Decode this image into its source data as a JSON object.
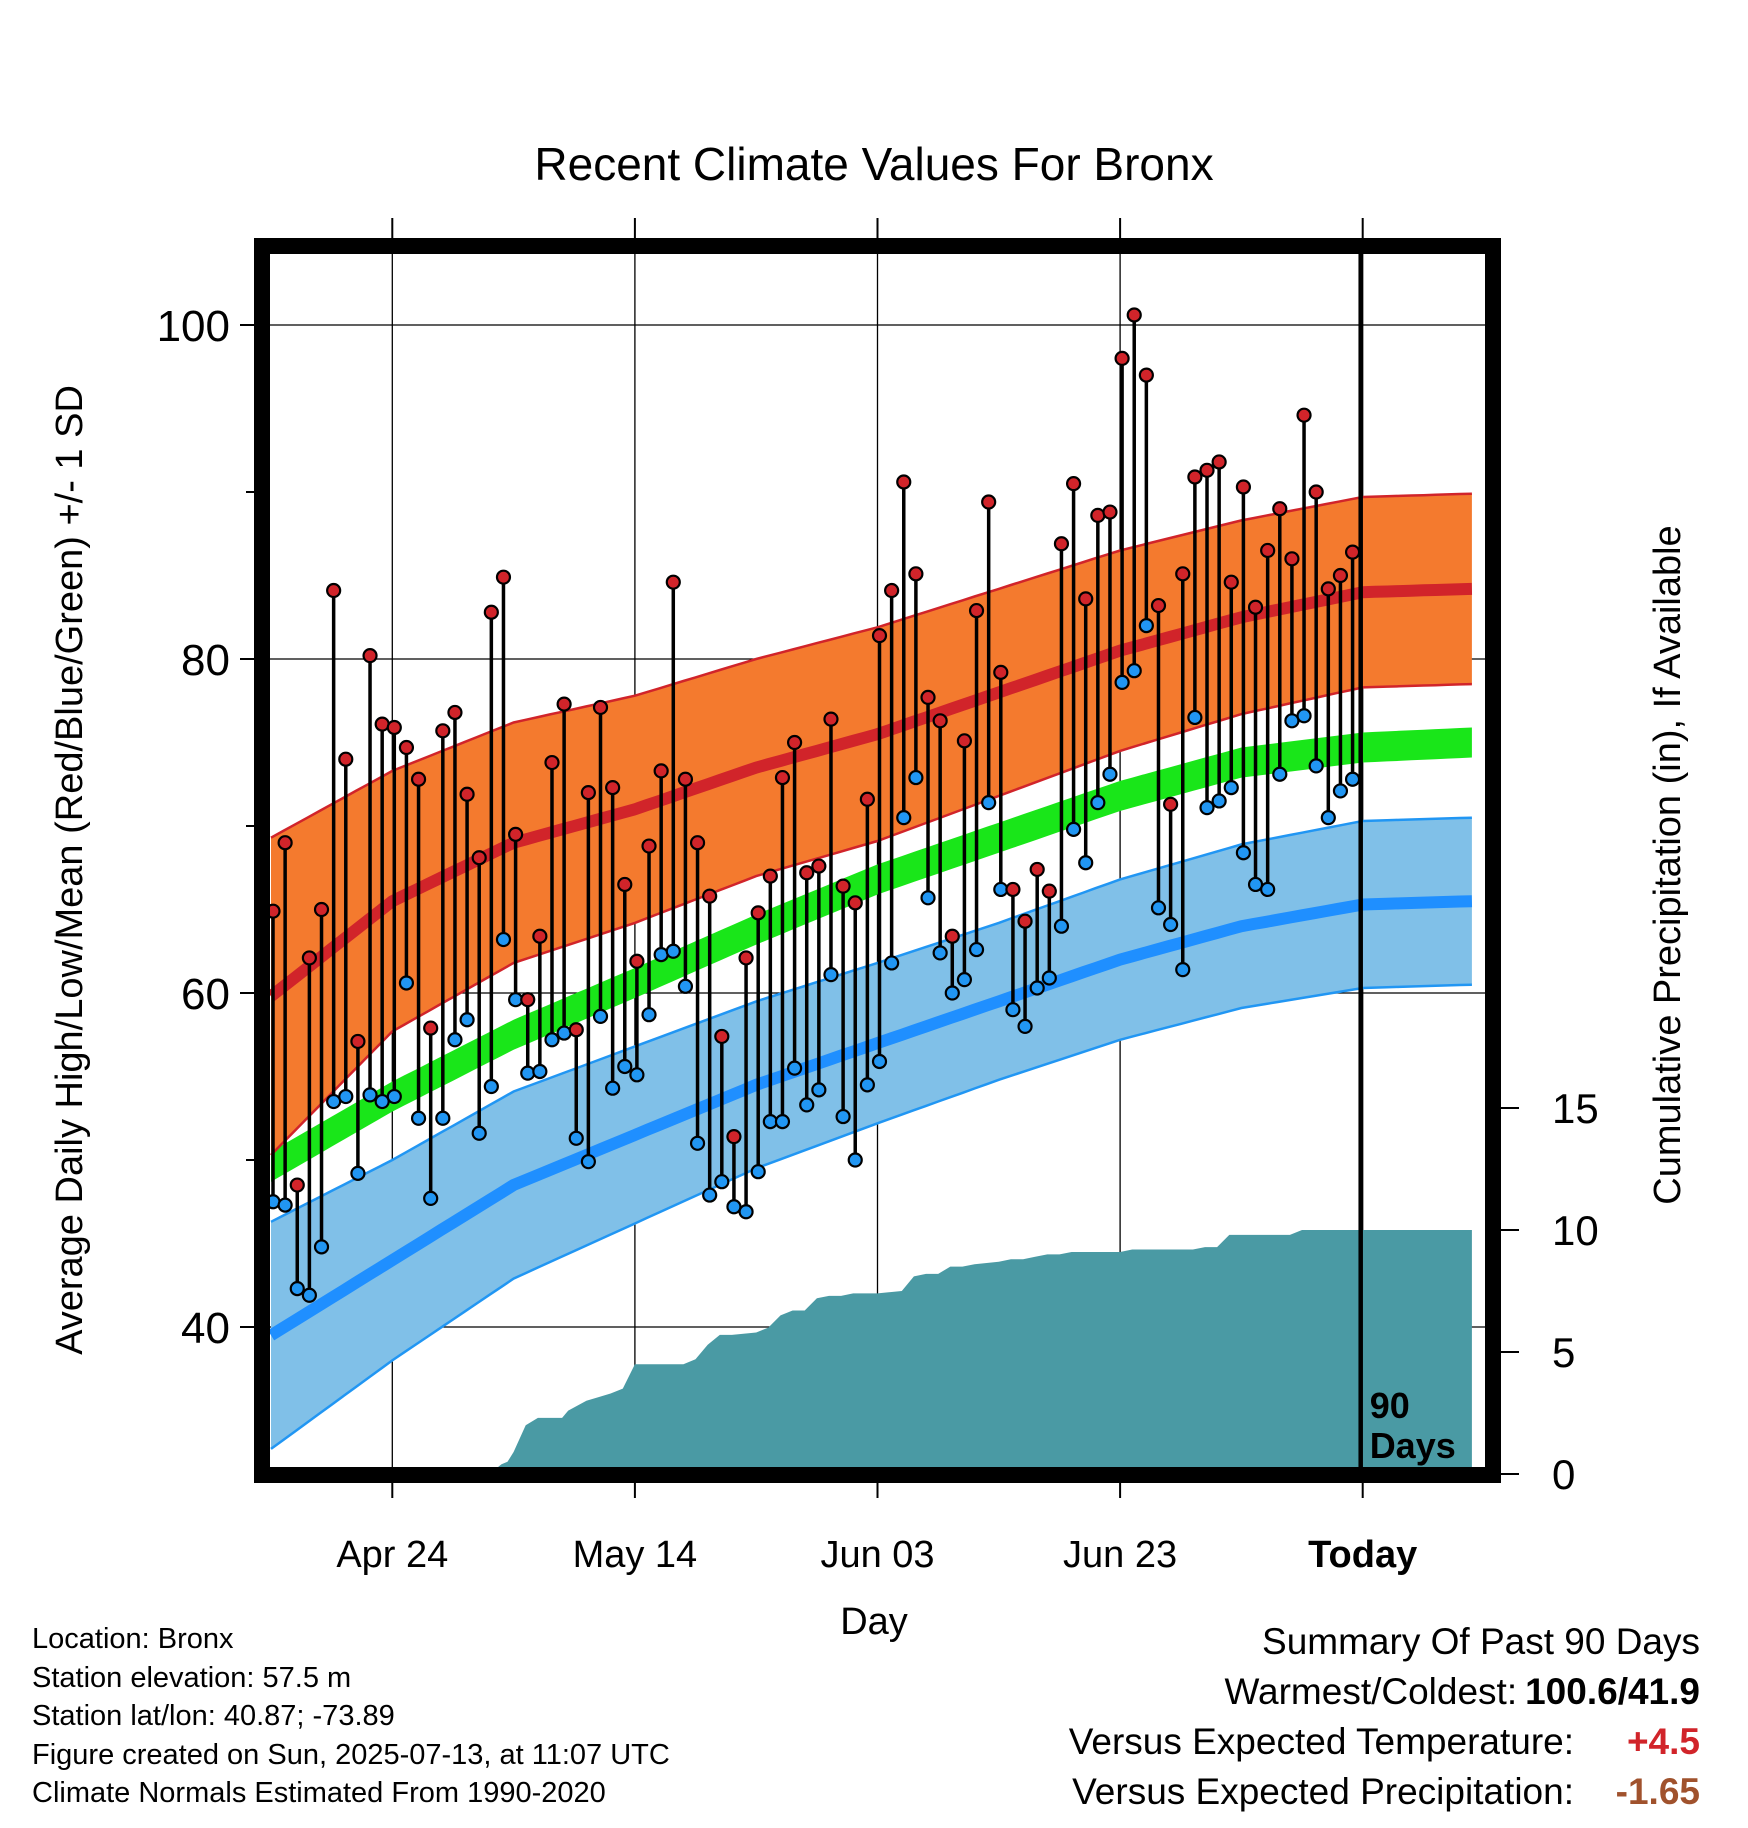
{
  "chart_data": {
    "type": "line",
    "title": "Recent Climate Values For Bronx",
    "xlabel": "Day",
    "ylabel": "Average Daily High/Low/Mean (Red/Blue/Green) +/- 1 SD",
    "ylabel_right": "Cumulative Precipitation (in), If Available",
    "ylim": [
      32.5,
      106
    ],
    "ylim_right": [
      0,
      40
    ],
    "yticks": [
      40,
      60,
      80,
      100
    ],
    "yticks_right": [
      0,
      5,
      10,
      15
    ],
    "xticks": [
      {
        "day": 10,
        "label": "Apr 24"
      },
      {
        "day": 30,
        "label": "May 14"
      },
      {
        "day": 50,
        "label": "Jun 03"
      },
      {
        "day": 70,
        "label": "Jun 23"
      },
      {
        "day": 90,
        "label": "Today"
      }
    ],
    "today_label": [
      "90",
      "Days"
    ],
    "grid": true,
    "series": [
      {
        "name": "High",
        "color": "#c0222a",
        "markers": true
      },
      {
        "name": "Low",
        "color": "#2196f3",
        "markers": true
      },
      {
        "name": "Mean",
        "color": "#19e619"
      },
      {
        "name": "Cumulative Precipitation",
        "color": "#4a9aa4"
      }
    ],
    "normals": {
      "days": [
        0,
        10,
        20,
        30,
        40,
        50,
        60,
        70,
        80,
        90,
        99
      ],
      "high": [
        59.8,
        65.5,
        69.0,
        71.0,
        73.5,
        75.5,
        78.0,
        80.5,
        82.5,
        84.0,
        84.2
      ],
      "high_sd": [
        9.5,
        7.8,
        7.2,
        6.8,
        6.5,
        6.4,
        6.2,
        6.0,
        5.8,
        5.7,
        5.7
      ],
      "low": [
        39.5,
        44.0,
        48.5,
        51.5,
        54.5,
        57.0,
        59.5,
        62.0,
        64.0,
        65.3,
        65.5
      ],
      "low_sd": [
        6.8,
        6.0,
        5.6,
        5.3,
        5.0,
        4.8,
        4.7,
        4.8,
        4.9,
        5.0,
        5.0
      ],
      "mean": [
        49.6,
        53.8,
        57.5,
        60.6,
        63.8,
        66.8,
        69.3,
        71.8,
        73.8,
        74.7,
        75.0
      ],
      "mean_sd": [
        0.9,
        0.9,
        0.9,
        0.9,
        0.9,
        0.9,
        0.9,
        0.9,
        0.9,
        0.9,
        0.9
      ]
    },
    "daily": {
      "high": [
        64.9,
        69.0,
        48.5,
        62.1,
        65.0,
        84.1,
        74.0,
        57.1,
        80.2,
        76.1,
        75.9,
        74.7,
        72.8,
        57.9,
        75.7,
        76.8,
        71.9,
        68.1,
        82.8,
        84.9,
        69.5,
        59.6,
        63.4,
        73.8,
        77.3,
        57.8,
        72.0,
        77.1,
        72.3,
        66.5,
        61.9,
        68.8,
        73.3,
        84.6,
        72.8,
        69.0,
        65.8,
        57.4,
        51.4,
        62.1,
        64.8,
        67.0,
        72.9,
        75.0,
        67.2,
        67.6,
        76.4,
        66.4,
        65.4,
        71.6,
        81.4,
        84.1,
        90.6,
        85.1,
        77.7,
        76.3,
        63.4,
        75.1,
        82.9,
        89.4,
        79.2,
        66.2,
        64.3,
        67.4,
        66.1,
        86.9,
        90.5,
        83.6,
        88.6,
        88.8,
        98.0,
        100.6,
        97.0,
        83.2,
        71.3,
        85.1,
        90.9,
        91.3,
        91.8,
        84.6,
        90.3,
        83.1,
        86.5,
        89.0,
        86.0,
        94.6,
        90.0,
        84.2,
        85.0,
        86.4
      ],
      "low": [
        47.5,
        47.3,
        42.3,
        41.9,
        44.8,
        53.5,
        53.8,
        49.2,
        53.9,
        53.5,
        53.8,
        60.6,
        52.5,
        47.7,
        52.5,
        57.2,
        58.4,
        51.6,
        54.4,
        63.2,
        59.6,
        55.2,
        55.3,
        57.2,
        57.6,
        51.3,
        49.9,
        58.6,
        54.3,
        55.6,
        55.1,
        58.7,
        62.3,
        62.5,
        60.4,
        51.0,
        47.9,
        48.7,
        47.2,
        46.9,
        49.3,
        52.3,
        52.3,
        55.5,
        53.3,
        54.2,
        61.1,
        52.6,
        50.0,
        54.5,
        55.9,
        61.8,
        70.5,
        72.9,
        65.7,
        62.4,
        60.0,
        60.8,
        62.6,
        71.4,
        66.2,
        59.0,
        58.0,
        60.3,
        60.9,
        64.0,
        69.8,
        67.8,
        71.4,
        73.1,
        78.6,
        79.3,
        82.0,
        65.1,
        64.1,
        61.4,
        76.5,
        71.1,
        71.5,
        72.3,
        68.4,
        66.5,
        66.2,
        73.1,
        76.3,
        76.6,
        73.6,
        70.5,
        72.1,
        72.8
      ]
    },
    "precip": {
      "days": [
        0,
        18,
        19,
        19.5,
        20,
        21,
        22,
        24,
        24.5,
        26,
        28,
        29,
        30,
        34,
        35,
        36,
        37,
        38,
        40,
        41,
        42,
        43,
        44,
        45,
        46,
        47,
        48,
        50,
        52,
        53,
        54,
        55,
        56,
        57,
        58,
        60,
        61,
        62,
        63,
        64,
        65,
        66,
        67,
        68,
        69,
        70,
        71,
        72,
        73,
        74,
        75,
        76,
        77,
        78,
        79,
        80,
        81,
        82,
        83,
        84,
        85,
        86,
        87,
        88,
        89,
        99
      ],
      "values": [
        0,
        0,
        0.4,
        0.5,
        0.9,
        2.0,
        2.3,
        2.3,
        2.6,
        3.0,
        3.3,
        3.5,
        4.5,
        4.5,
        4.7,
        5.3,
        5.7,
        5.7,
        5.8,
        6.0,
        6.5,
        6.7,
        6.7,
        7.2,
        7.3,
        7.3,
        7.4,
        7.4,
        7.5,
        8.1,
        8.2,
        8.2,
        8.5,
        8.5,
        8.6,
        8.7,
        8.8,
        8.8,
        8.9,
        9.0,
        9.0,
        9.1,
        9.1,
        9.1,
        9.1,
        9.1,
        9.2,
        9.2,
        9.2,
        9.2,
        9.2,
        9.2,
        9.3,
        9.3,
        9.8,
        9.8,
        9.8,
        9.8,
        9.8,
        9.8,
        10.0,
        10.0,
        10.0,
        10.0,
        10.0,
        10.0
      ]
    }
  },
  "meta": {
    "location": "Location: Bronx",
    "elevation": "Station elevation: 57.5 m",
    "latlon": "Station lat/lon: 40.87; -73.89",
    "created": "Figure created on Sun, 2025-07-13, at 11:07 UTC",
    "normals": "Climate Normals Estimated From 1990-2020"
  },
  "summary": {
    "heading": "Summary Of Past 90 Days",
    "warm_cold_label": "Warmest/Coldest:",
    "warm_cold_value": "100.6/41.9",
    "temp_label": "Versus Expected Temperature:",
    "temp_value": "+4.5",
    "temp_color": "#d1242a",
    "precip_label": "Versus Expected Precipitation:",
    "precip_value": "-1.65",
    "precip_color": "#a0522d"
  }
}
